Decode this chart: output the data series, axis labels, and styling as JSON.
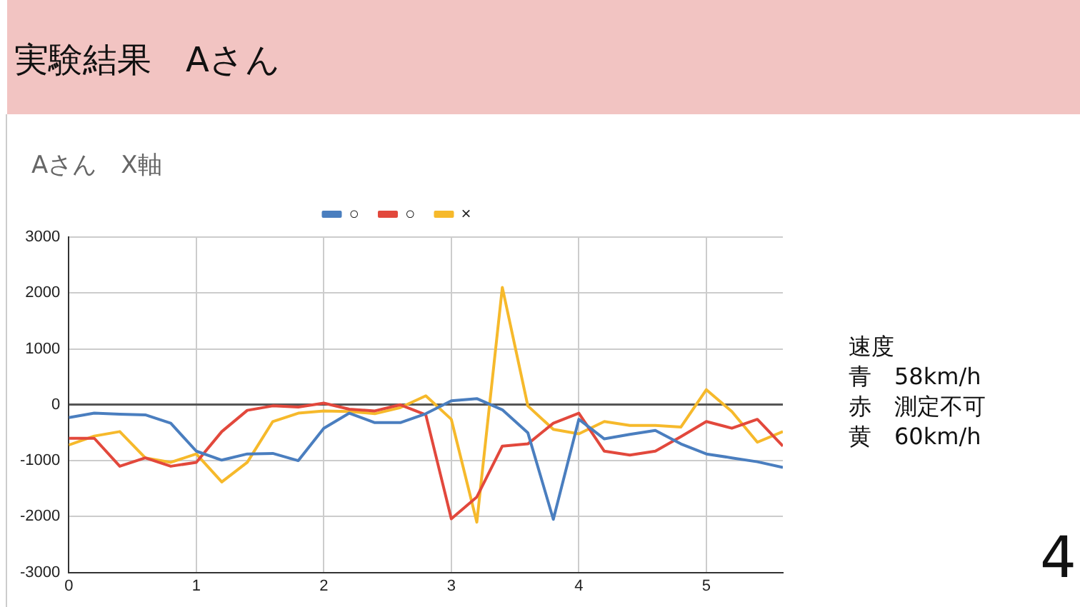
{
  "chart_data": {
    "type": "line",
    "title": "実験結果　Aさん",
    "subtitle": "Aさん　X軸",
    "x": [
      0,
      0.2,
      0.4,
      0.6,
      0.8,
      1.0,
      1.2,
      1.4,
      1.6,
      1.8,
      2.0,
      2.2,
      2.4,
      2.6,
      2.8,
      3.0,
      3.2,
      3.4,
      3.6,
      3.8,
      4.0,
      4.2,
      4.4,
      4.6,
      4.8,
      5.0,
      5.2,
      5.4,
      5.6
    ],
    "series": [
      {
        "name": "○",
        "color": "#4a7ebf",
        "values": [
          -230,
          -150,
          -170,
          -180,
          -330,
          -830,
          -990,
          -880,
          -870,
          -1000,
          -420,
          -150,
          -320,
          -320,
          -160,
          70,
          110,
          -90,
          -500,
          -2050,
          -260,
          -610,
          -530,
          -460,
          -700,
          -880,
          -950,
          -1020,
          -1120
        ]
      },
      {
        "name": "○",
        "color": "#e2483c",
        "values": [
          -600,
          -600,
          -1100,
          -950,
          -1100,
          -1030,
          -480,
          -100,
          -20,
          -40,
          30,
          -80,
          -110,
          0,
          -180,
          -2040,
          -1650,
          -740,
          -700,
          -330,
          -150,
          -830,
          -900,
          -830,
          -570,
          -300,
          -420,
          -260,
          -740
        ]
      },
      {
        "name": "×",
        "color": "#f6b92b",
        "values": [
          -720,
          -560,
          -480,
          -950,
          -1030,
          -880,
          -1380,
          -1030,
          -300,
          -150,
          -110,
          -120,
          -160,
          -50,
          160,
          -260,
          -2100,
          2100,
          -20,
          -440,
          -520,
          -300,
          -370,
          -370,
          -400,
          270,
          -120,
          -670,
          -480
        ]
      }
    ],
    "xlim": [
      0,
      5.6
    ],
    "xticks": [
      0,
      1,
      2,
      3,
      4,
      5
    ],
    "ylim": [
      -3000,
      3000
    ],
    "yticks": [
      -3000,
      -2000,
      -1000,
      0,
      1000,
      2000,
      3000
    ],
    "grid": true,
    "legend": "top",
    "marker": "none",
    "line_style": "solid",
    "annotations": [
      "速度",
      "青　58km/h",
      "赤　測定不可",
      "黄　60km/h",
      "4"
    ]
  }
}
